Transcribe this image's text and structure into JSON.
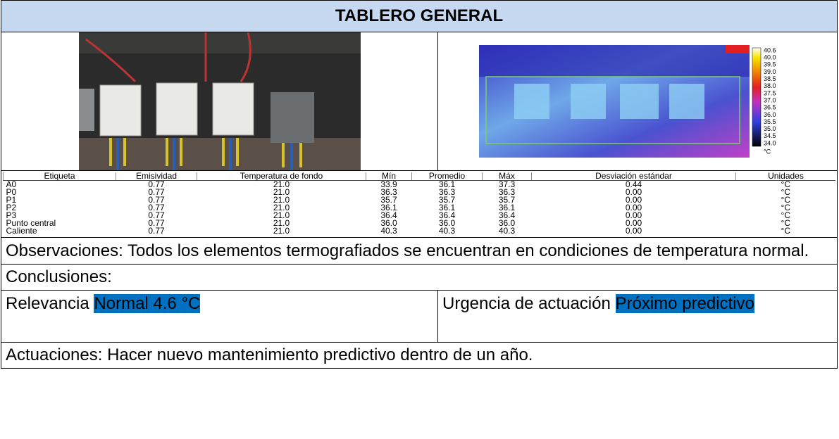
{
  "header": {
    "title": "TABLERO GENERAL"
  },
  "thermal_image": {
    "scale": [
      "40.6",
      "40.0",
      "39.5",
      "39.0",
      "38.5",
      "38.0",
      "37.5",
      "37.0",
      "36.5",
      "36.0",
      "35.5",
      "35.0",
      "34.5",
      "34.0"
    ],
    "unit": "°C"
  },
  "measurements": {
    "columns": [
      "Etiqueta",
      "Emisividad",
      "Temperatura de fondo",
      "Mín",
      "Promedio",
      "Máx",
      "Desviación estándar",
      "Unidades"
    ],
    "rows": [
      [
        "A0",
        "0.77",
        "21.0",
        "33.9",
        "36.1",
        "37.3",
        "0.44",
        "°C"
      ],
      [
        "P0",
        "0.77",
        "21.0",
        "36.3",
        "36.3",
        "36.3",
        "0.00",
        "°C"
      ],
      [
        "P1",
        "0.77",
        "21.0",
        "35.7",
        "35.7",
        "35.7",
        "0.00",
        "°C"
      ],
      [
        "P2",
        "0.77",
        "21.0",
        "36.1",
        "36.1",
        "36.1",
        "0.00",
        "°C"
      ],
      [
        "P3",
        "0.77",
        "21.0",
        "36.4",
        "36.4",
        "36.4",
        "0.00",
        "°C"
      ],
      [
        "Punto central",
        "0.77",
        "21.0",
        "36.0",
        "36.0",
        "36.0",
        "0.00",
        "°C"
      ],
      [
        "Caliente",
        "0.77",
        "21.0",
        "40.3",
        "40.3",
        "40.3",
        "0.00",
        "°C"
      ]
    ]
  },
  "observations": "Observaciones: Todos los elementos termografiados se encuentran en condiciones de temperatura normal.",
  "conclusions": "Conclusiones:",
  "relevance": {
    "label": "Relevancia",
    "value": "Normal 4.6 °C"
  },
  "urgency": {
    "label": "Urgencia de actuación",
    "value": "Próximo predictivo"
  },
  "actions": "Actuaciones: Hacer nuevo mantenimiento predictivo dentro de un año."
}
